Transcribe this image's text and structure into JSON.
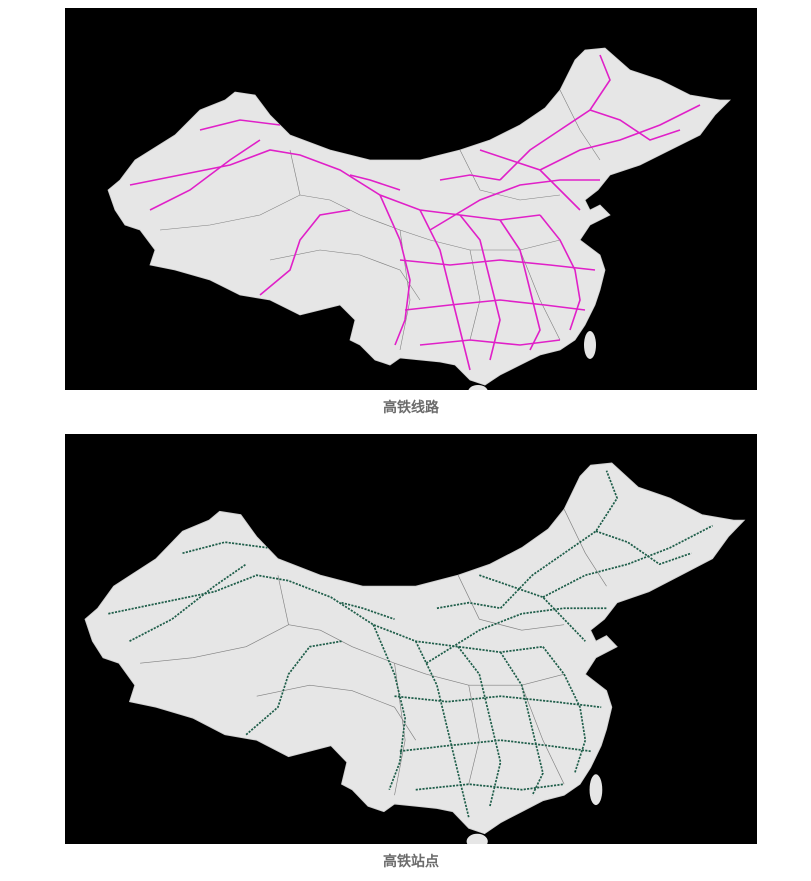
{
  "figures": [
    {
      "caption": "高铁线路"
    },
    {
      "caption": "高铁站点"
    }
  ]
}
